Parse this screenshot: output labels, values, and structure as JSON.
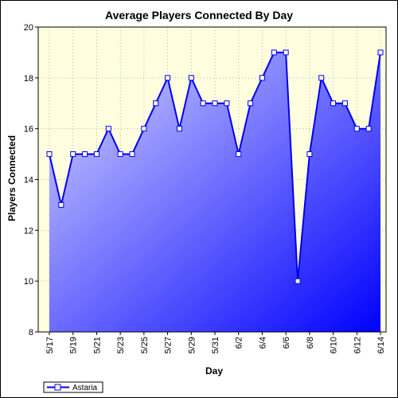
{
  "chart_data": {
    "type": "area",
    "title": "Average Players Connected By Day",
    "xlabel": "Day",
    "ylabel": "Players Connected",
    "ylim": [
      8,
      20
    ],
    "yticks": [
      8,
      10,
      12,
      14,
      16,
      18,
      20
    ],
    "grid": true,
    "legend_position": "bottom-left",
    "x": [
      "5/17",
      "5/18",
      "5/19",
      "5/20",
      "5/21",
      "5/22",
      "5/23",
      "5/24",
      "5/25",
      "5/26",
      "5/27",
      "5/28",
      "5/29",
      "5/30",
      "5/31",
      "6/1",
      "6/2",
      "6/3",
      "6/4",
      "6/5",
      "6/6",
      "6/7",
      "6/8",
      "6/9",
      "6/10",
      "6/11",
      "6/12",
      "6/13",
      "6/14"
    ],
    "xtick_labels": [
      "5/17",
      "5/19",
      "5/21",
      "5/23",
      "5/25",
      "5/27",
      "5/29",
      "5/31",
      "6/2",
      "6/4",
      "6/6",
      "6/8",
      "6/10",
      "6/12",
      "6/14"
    ],
    "series": [
      {
        "name": "Astaria",
        "values": [
          15,
          13,
          15,
          15,
          15,
          16,
          15,
          15,
          16,
          17,
          18,
          16,
          18,
          17,
          17,
          17,
          15,
          17,
          18,
          19,
          19,
          10,
          15,
          18,
          17,
          17,
          16,
          16,
          19
        ]
      }
    ],
    "colors": {
      "background": "#ffffe0",
      "line": "#0000ee",
      "fill_light": "#d8d8ff",
      "fill_dark": "#0000ff",
      "grid": "#b0b0b0"
    }
  }
}
